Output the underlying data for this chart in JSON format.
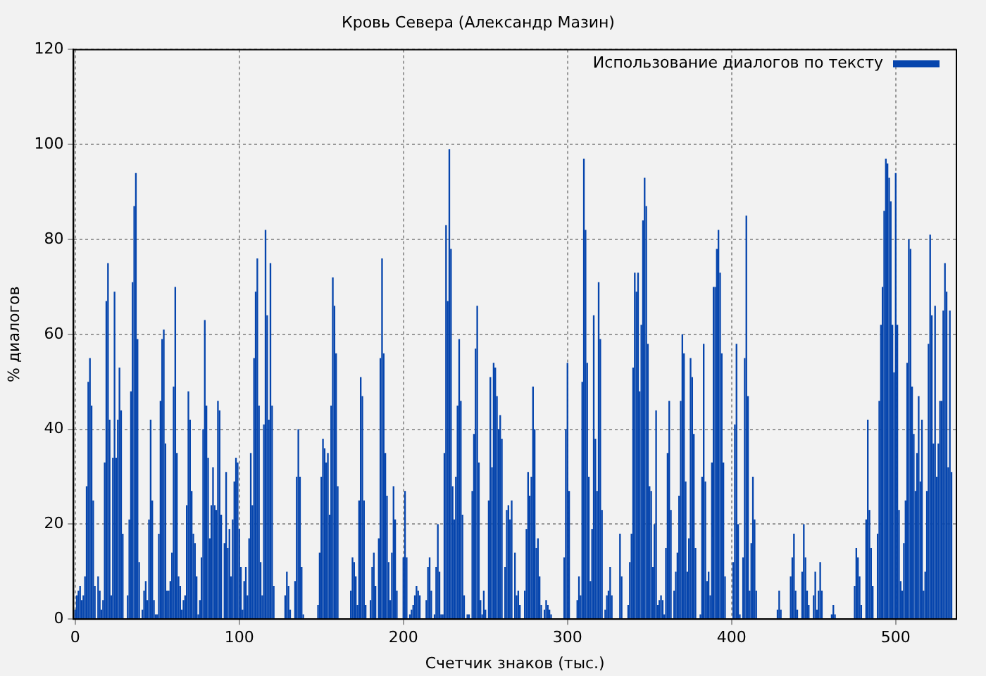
{
  "chart_data": {
    "type": "bar",
    "title": "Кровь Севера (Александр Мазин)",
    "xlabel": "Счетчик знаков (тыс.)",
    "ylabel": "% диалогов",
    "xlim": [
      -1,
      537
    ],
    "xticks": [
      0,
      100,
      200,
      300,
      400,
      500
    ],
    "ylim": [
      0,
      120
    ],
    "yticks": [
      0,
      20,
      40,
      60,
      80,
      100,
      120
    ],
    "grid": true,
    "legend": "top right",
    "series": [
      {
        "name": "Использование диалогов по тексту",
        "color": "#0645ad",
        "x": [
          0,
          1,
          2,
          3,
          4,
          5,
          6,
          7,
          8,
          9,
          10,
          11,
          12,
          14,
          15,
          16,
          17,
          18,
          19,
          20,
          21,
          22,
          23,
          24,
          25,
          26,
          27,
          28,
          29,
          32,
          33,
          34,
          35,
          36,
          37,
          38,
          39,
          41,
          42,
          43,
          44,
          45,
          46,
          47,
          48,
          49,
          50,
          51,
          52,
          53,
          54,
          55,
          56,
          57,
          58,
          59,
          60,
          61,
          62,
          63,
          64,
          65,
          66,
          67,
          68,
          69,
          70,
          71,
          72,
          73,
          74,
          75,
          76,
          77,
          78,
          79,
          80,
          81,
          82,
          83,
          84,
          85,
          86,
          87,
          88,
          89,
          91,
          92,
          93,
          94,
          95,
          96,
          97,
          98,
          99,
          100,
          101,
          102,
          103,
          104,
          105,
          106,
          107,
          108,
          109,
          110,
          111,
          112,
          113,
          114,
          115,
          116,
          117,
          118,
          119,
          120,
          121,
          128,
          129,
          130,
          131,
          134,
          135,
          136,
          137,
          138,
          139,
          148,
          149,
          150,
          151,
          152,
          153,
          154,
          155,
          156,
          157,
          158,
          159,
          160,
          168,
          169,
          170,
          171,
          172,
          173,
          174,
          175,
          176,
          177,
          180,
          181,
          182,
          183,
          185,
          186,
          187,
          188,
          189,
          190,
          191,
          192,
          193,
          194,
          195,
          196,
          200,
          201,
          202,
          204,
          205,
          206,
          207,
          208,
          209,
          210,
          214,
          215,
          216,
          217,
          219,
          220,
          221,
          222,
          223,
          224,
          225,
          226,
          227,
          228,
          229,
          230,
          231,
          232,
          233,
          234,
          235,
          236,
          237,
          239,
          240,
          242,
          243,
          244,
          245,
          246,
          247,
          248,
          249,
          250,
          252,
          253,
          254,
          255,
          256,
          257,
          258,
          259,
          260,
          262,
          263,
          264,
          265,
          266,
          268,
          269,
          270,
          271,
          274,
          275,
          276,
          277,
          278,
          279,
          280,
          281,
          282,
          283,
          284,
          286,
          287,
          288,
          289,
          290,
          298,
          299,
          300,
          301,
          306,
          307,
          308,
          309,
          310,
          311,
          312,
          313,
          314,
          315,
          316,
          317,
          318,
          319,
          320,
          321,
          323,
          324,
          325,
          326,
          327,
          332,
          333,
          337,
          338,
          339,
          340,
          341,
          342,
          343,
          344,
          345,
          346,
          347,
          348,
          349,
          350,
          351,
          352,
          353,
          354,
          355,
          356,
          357,
          358,
          359,
          360,
          361,
          362,
          363,
          365,
          366,
          367,
          368,
          369,
          370,
          371,
          372,
          373,
          374,
          375,
          376,
          377,
          378,
          381,
          382,
          383,
          384,
          385,
          386,
          387,
          388,
          389,
          390,
          391,
          392,
          393,
          394,
          395,
          396,
          401,
          402,
          403,
          404,
          405,
          407,
          408,
          409,
          410,
          411,
          412,
          413,
          414,
          415,
          428,
          429,
          430,
          436,
          437,
          438,
          439,
          440,
          443,
          444,
          445,
          446,
          447,
          450,
          451,
          452,
          453,
          454,
          455,
          461,
          462,
          463,
          475,
          476,
          477,
          478,
          479,
          482,
          483,
          484,
          485,
          486,
          489,
          490,
          491,
          492,
          493,
          494,
          495,
          496,
          497,
          498,
          499,
          500,
          501,
          502,
          503,
          504,
          505,
          506,
          507,
          508,
          509,
          510,
          511,
          512,
          513,
          514,
          515,
          516,
          517,
          518,
          519,
          520,
          521,
          522,
          523,
          524,
          525,
          526,
          527,
          528,
          529,
          530,
          531,
          532,
          533,
          534
        ],
        "values": [
          2,
          5,
          6,
          7,
          4,
          5,
          9,
          28,
          50,
          55,
          45,
          25,
          7,
          9,
          6,
          2,
          4,
          33,
          67,
          75,
          42,
          5,
          34,
          69,
          34,
          42,
          53,
          44,
          18,
          5,
          21,
          48,
          71,
          87,
          94,
          59,
          12,
          2,
          6,
          8,
          4,
          21,
          42,
          25,
          4,
          1,
          1,
          18,
          46,
          59,
          61,
          37,
          6,
          6,
          8,
          14,
          49,
          70,
          35,
          9,
          7,
          2,
          4,
          5,
          24,
          48,
          42,
          27,
          18,
          16,
          9,
          1,
          4,
          13,
          40,
          63,
          45,
          34,
          17,
          24,
          32,
          24,
          23,
          46,
          44,
          22,
          16,
          31,
          15,
          19,
          9,
          21,
          29,
          34,
          33,
          19,
          11,
          2,
          8,
          11,
          5,
          17,
          35,
          24,
          55,
          69,
          76,
          45,
          12,
          5,
          41,
          82,
          64,
          42,
          75,
          45,
          7,
          5,
          10,
          7,
          2,
          8,
          30,
          40,
          30,
          11,
          1,
          3,
          14,
          30,
          38,
          36,
          33,
          35,
          22,
          45,
          72,
          66,
          56,
          28,
          6,
          13,
          12,
          9,
          3,
          25,
          51,
          47,
          25,
          3,
          4,
          11,
          14,
          7,
          17,
          55,
          76,
          56,
          35,
          26,
          12,
          4,
          14,
          28,
          21,
          6,
          13,
          27,
          13,
          1,
          2,
          3,
          5,
          7,
          6,
          5,
          4,
          11,
          13,
          6,
          1,
          11,
          20,
          10,
          1,
          1,
          35,
          83,
          67,
          99,
          78,
          28,
          21,
          30,
          45,
          59,
          46,
          22,
          5,
          1,
          1,
          27,
          39,
          57,
          66,
          33,
          4,
          1,
          6,
          2,
          25,
          51,
          32,
          54,
          53,
          47,
          40,
          43,
          38,
          11,
          23,
          24,
          21,
          25,
          14,
          5,
          6,
          3,
          6,
          19,
          31,
          26,
          30,
          49,
          40,
          15,
          17,
          9,
          3,
          2,
          4,
          3,
          2,
          1,
          13,
          40,
          54,
          27,
          4,
          9,
          5,
          50,
          97,
          82,
          54,
          30,
          8,
          19,
          64,
          38,
          27,
          71,
          59,
          23,
          2,
          5,
          6,
          11,
          5,
          18,
          9,
          3,
          12,
          18,
          53,
          73,
          69,
          73,
          48,
          62,
          84,
          93,
          87,
          58,
          28,
          27,
          11,
          20,
          44,
          3,
          4,
          5,
          4,
          1,
          15,
          35,
          46,
          23,
          6,
          10,
          14,
          26,
          46,
          60,
          56,
          29,
          10,
          17,
          55,
          51,
          39,
          15,
          1,
          30,
          58,
          29,
          8,
          10,
          5,
          33,
          70,
          70,
          78,
          82,
          73,
          56,
          33,
          9,
          12,
          41,
          58,
          20,
          1,
          13,
          55,
          85,
          47,
          6,
          16,
          30,
          21,
          6,
          2,
          6,
          2,
          9,
          13,
          18,
          6,
          2,
          10,
          20,
          13,
          6,
          3,
          5,
          10,
          2,
          6,
          12,
          6,
          1,
          3,
          1,
          7,
          15,
          13,
          9,
          3,
          21,
          42,
          23,
          15,
          7,
          18,
          46,
          62,
          70,
          86,
          97,
          96,
          93,
          88,
          62,
          52,
          94,
          62,
          23,
          8,
          6,
          16,
          25,
          54,
          80,
          78,
          49,
          39,
          27,
          35,
          47,
          29,
          42,
          6,
          10,
          27,
          58,
          81,
          64,
          37,
          66,
          30,
          37,
          46,
          46,
          65,
          75,
          69,
          32,
          65,
          31
        ]
      }
    ]
  }
}
